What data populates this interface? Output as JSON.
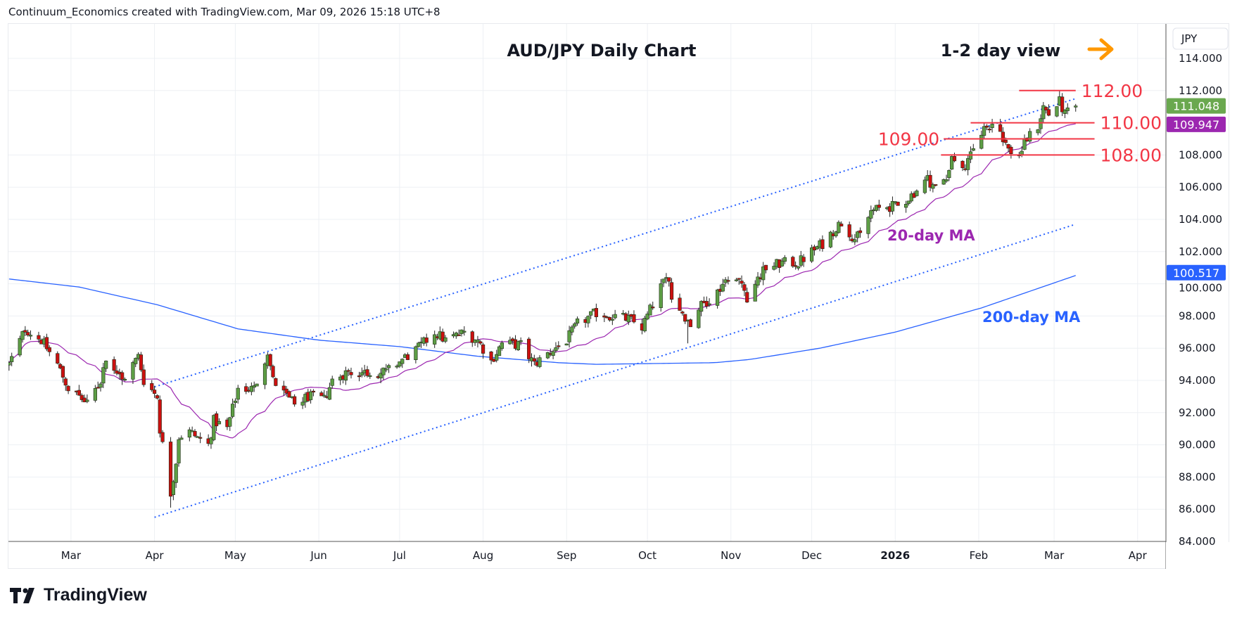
{
  "header": {
    "attribution": "Continuum_Economics created with TradingView.com, Mar 09, 2026 15:18 UTC+8"
  },
  "branding": {
    "logo_text": "TradingView"
  },
  "chart_data": {
    "type": "candlestick",
    "title": "AUD/JPY Daily Chart",
    "subtitle": "1-2 day view",
    "view_direction": "right-arrow",
    "currency_label": "JPY",
    "ylim": [
      84,
      115.5
    ],
    "y_ticks": [
      "84.000",
      "86.000",
      "88.000",
      "90.000",
      "92.000",
      "94.000",
      "96.000",
      "98.000",
      "100.000",
      "102.000",
      "104.000",
      "106.000",
      "108.000",
      "112.000",
      "114.000"
    ],
    "x_ticks": [
      {
        "label": "Mar",
        "date": "2025-03-01"
      },
      {
        "label": "Apr",
        "date": "2025-04-01"
      },
      {
        "label": "May",
        "date": "2025-05-01"
      },
      {
        "label": "Jun",
        "date": "2025-06-01"
      },
      {
        "label": "Jul",
        "date": "2025-07-01"
      },
      {
        "label": "Aug",
        "date": "2025-08-01"
      },
      {
        "label": "Sep",
        "date": "2025-09-01"
      },
      {
        "label": "Oct",
        "date": "2025-10-01"
      },
      {
        "label": "Nov",
        "date": "2025-11-01"
      },
      {
        "label": "Dec",
        "date": "2025-12-01"
      },
      {
        "label": "2026",
        "date": "2026-01-01",
        "bold": true
      },
      {
        "label": "Feb",
        "date": "2026-02-01"
      },
      {
        "label": "Mar",
        "date": "2026-03-01"
      },
      {
        "label": "Apr",
        "date": "2026-04-01"
      }
    ],
    "close_path": [
      [
        "2025-02-06",
        95.0
      ],
      [
        "2025-02-12",
        97.2
      ],
      [
        "2025-02-18",
        96.5
      ],
      [
        "2025-02-24",
        95.0
      ],
      [
        "2025-02-28",
        93.5
      ],
      [
        "2025-03-04",
        93.0
      ],
      [
        "2025-03-07",
        92.5
      ],
      [
        "2025-03-12",
        94.0
      ],
      [
        "2025-03-14",
        95.5
      ],
      [
        "2025-03-20",
        94.0
      ],
      [
        "2025-03-26",
        95.5
      ],
      [
        "2025-03-28",
        94.0
      ],
      [
        "2025-04-02",
        93.0
      ],
      [
        "2025-04-03",
        91.0
      ],
      [
        "2025-04-07",
        87.0
      ],
      [
        "2025-04-09",
        89.0
      ],
      [
        "2025-04-10",
        90.5
      ],
      [
        "2025-04-14",
        90.8
      ],
      [
        "2025-04-21",
        90.0
      ],
      [
        "2025-04-23",
        91.5
      ],
      [
        "2025-04-28",
        91.0
      ],
      [
        "2025-05-02",
        93.5
      ],
      [
        "2025-05-08",
        93.5
      ],
      [
        "2025-05-13",
        95.8
      ],
      [
        "2025-05-15",
        94.0
      ],
      [
        "2025-05-20",
        93.0
      ],
      [
        "2025-05-23",
        92.5
      ],
      [
        "2025-05-28",
        93.0
      ],
      [
        "2025-06-03",
        92.8
      ],
      [
        "2025-06-06",
        94.0
      ],
      [
        "2025-06-11",
        94.5
      ],
      [
        "2025-06-17",
        94.5
      ],
      [
        "2025-06-26",
        94.5
      ],
      [
        "2025-07-02",
        95.3
      ],
      [
        "2025-07-08",
        96.0
      ],
      [
        "2025-07-14",
        97.0
      ],
      [
        "2025-07-18",
        96.5
      ],
      [
        "2025-07-25",
        97.0
      ],
      [
        "2025-07-30",
        96.5
      ],
      [
        "2025-08-04",
        95.2
      ],
      [
        "2025-08-08",
        96.3
      ],
      [
        "2025-08-15",
        96.2
      ],
      [
        "2025-08-20",
        95.0
      ],
      [
        "2025-08-26",
        95.8
      ],
      [
        "2025-09-01",
        96.5
      ],
      [
        "2025-09-05",
        97.5
      ],
      [
        "2025-09-12",
        98.2
      ],
      [
        "2025-09-18",
        98.0
      ],
      [
        "2025-09-24",
        97.8
      ],
      [
        "2025-09-29",
        97.3
      ],
      [
        "2025-10-06",
        99.8
      ],
      [
        "2025-10-09",
        100.5
      ],
      [
        "2025-10-10",
        99.0
      ],
      [
        "2025-10-13",
        98.5
      ],
      [
        "2025-10-17",
        97.5
      ],
      [
        "2025-10-20",
        98.5
      ],
      [
        "2025-10-27",
        99.5
      ],
      [
        "2025-10-31",
        100.5
      ],
      [
        "2025-11-05",
        100.0
      ],
      [
        "2025-11-07",
        99.2
      ],
      [
        "2025-11-11",
        100.3
      ],
      [
        "2025-11-14",
        101.0
      ],
      [
        "2025-11-20",
        101.3
      ],
      [
        "2025-11-26",
        101.3
      ],
      [
        "2025-12-01",
        102.0
      ],
      [
        "2025-12-05",
        102.5
      ],
      [
        "2025-12-10",
        103.5
      ],
      [
        "2025-12-12",
        103.8
      ],
      [
        "2025-12-17",
        102.8
      ],
      [
        "2025-12-19",
        103.0
      ],
      [
        "2025-12-23",
        104.5
      ],
      [
        "2025-12-29",
        104.8
      ],
      [
        "2026-01-02",
        104.8
      ],
      [
        "2026-01-07",
        105.5
      ],
      [
        "2026-01-13",
        106.5
      ],
      [
        "2026-01-16",
        106.0
      ],
      [
        "2026-01-20",
        106.5
      ],
      [
        "2026-01-22",
        108.0
      ],
      [
        "2026-01-26",
        107.0
      ],
      [
        "2026-01-28",
        107.5
      ],
      [
        "2026-02-02",
        109.5
      ],
      [
        "2026-02-06",
        110.0
      ],
      [
        "2026-02-09",
        109.5
      ],
      [
        "2026-02-12",
        108.3
      ],
      [
        "2026-02-16",
        108.0
      ],
      [
        "2026-02-19",
        109.0
      ],
      [
        "2026-02-23",
        109.8
      ],
      [
        "2026-02-25",
        111.0
      ],
      [
        "2026-02-27",
        110.5
      ],
      [
        "2026-03-03",
        111.3
      ],
      [
        "2026-03-05",
        110.5
      ],
      [
        "2026-03-09",
        111.048
      ]
    ],
    "extremes": [
      [
        "2025-04-07",
        "low",
        86.1
      ],
      [
        "2026-03-03",
        "high",
        112.0
      ],
      [
        "2025-10-16",
        "low",
        96.3
      ]
    ],
    "series": [
      {
        "name": "20-day MA",
        "color": "#9c27b0",
        "last": "109.947",
        "label": "20-day MA"
      },
      {
        "name": "200-day MA",
        "color": "#2962ff",
        "last": "100.517",
        "label": "200-day MA",
        "path": [
          [
            "2025-02-06",
            100.3
          ],
          [
            "2025-03-04",
            99.8
          ],
          [
            "2025-04-02",
            98.7
          ],
          [
            "2025-05-02",
            97.2
          ],
          [
            "2025-06-01",
            96.5
          ],
          [
            "2025-07-01",
            96.1
          ],
          [
            "2025-07-30",
            95.5
          ],
          [
            "2025-08-29",
            95.1
          ],
          [
            "2025-09-12",
            95.0
          ],
          [
            "2025-10-26",
            95.1
          ],
          [
            "2025-11-08",
            95.3
          ],
          [
            "2025-12-04",
            96.0
          ],
          [
            "2026-01-01",
            97.0
          ],
          [
            "2026-02-02",
            98.5
          ],
          [
            "2026-03-09",
            100.517
          ]
        ]
      }
    ],
    "last_price": {
      "value": "111.048",
      "color": "#6aa84f"
    },
    "trendlines": [
      {
        "name": "upper-channel",
        "from": [
          "2025-04-01",
          93.6
        ],
        "to": [
          "2026-03-09",
          111.5
        ]
      },
      {
        "name": "lower-channel",
        "from": [
          "2025-04-01",
          85.5
        ],
        "to": [
          "2026-03-09",
          103.7
        ]
      }
    ],
    "levels": [
      {
        "label": "112.00",
        "value": 112.0,
        "from": "2026-02-16",
        "to": "2026-03-09"
      },
      {
        "label": "110.00",
        "value": 110.0,
        "from": "2026-01-29",
        "to": "2026-03-16"
      },
      {
        "label": "109.00",
        "value": 109.0,
        "from": "2026-01-19",
        "to": "2026-03-16"
      },
      {
        "label": "108.00",
        "value": 108.0,
        "from": "2026-01-18",
        "to": "2026-03-16"
      }
    ],
    "colors": {
      "up": "#5d9e45",
      "down": "#cc1010",
      "level": "#f23645",
      "arrow": "#ff9800",
      "trend": "#2962ff"
    }
  }
}
